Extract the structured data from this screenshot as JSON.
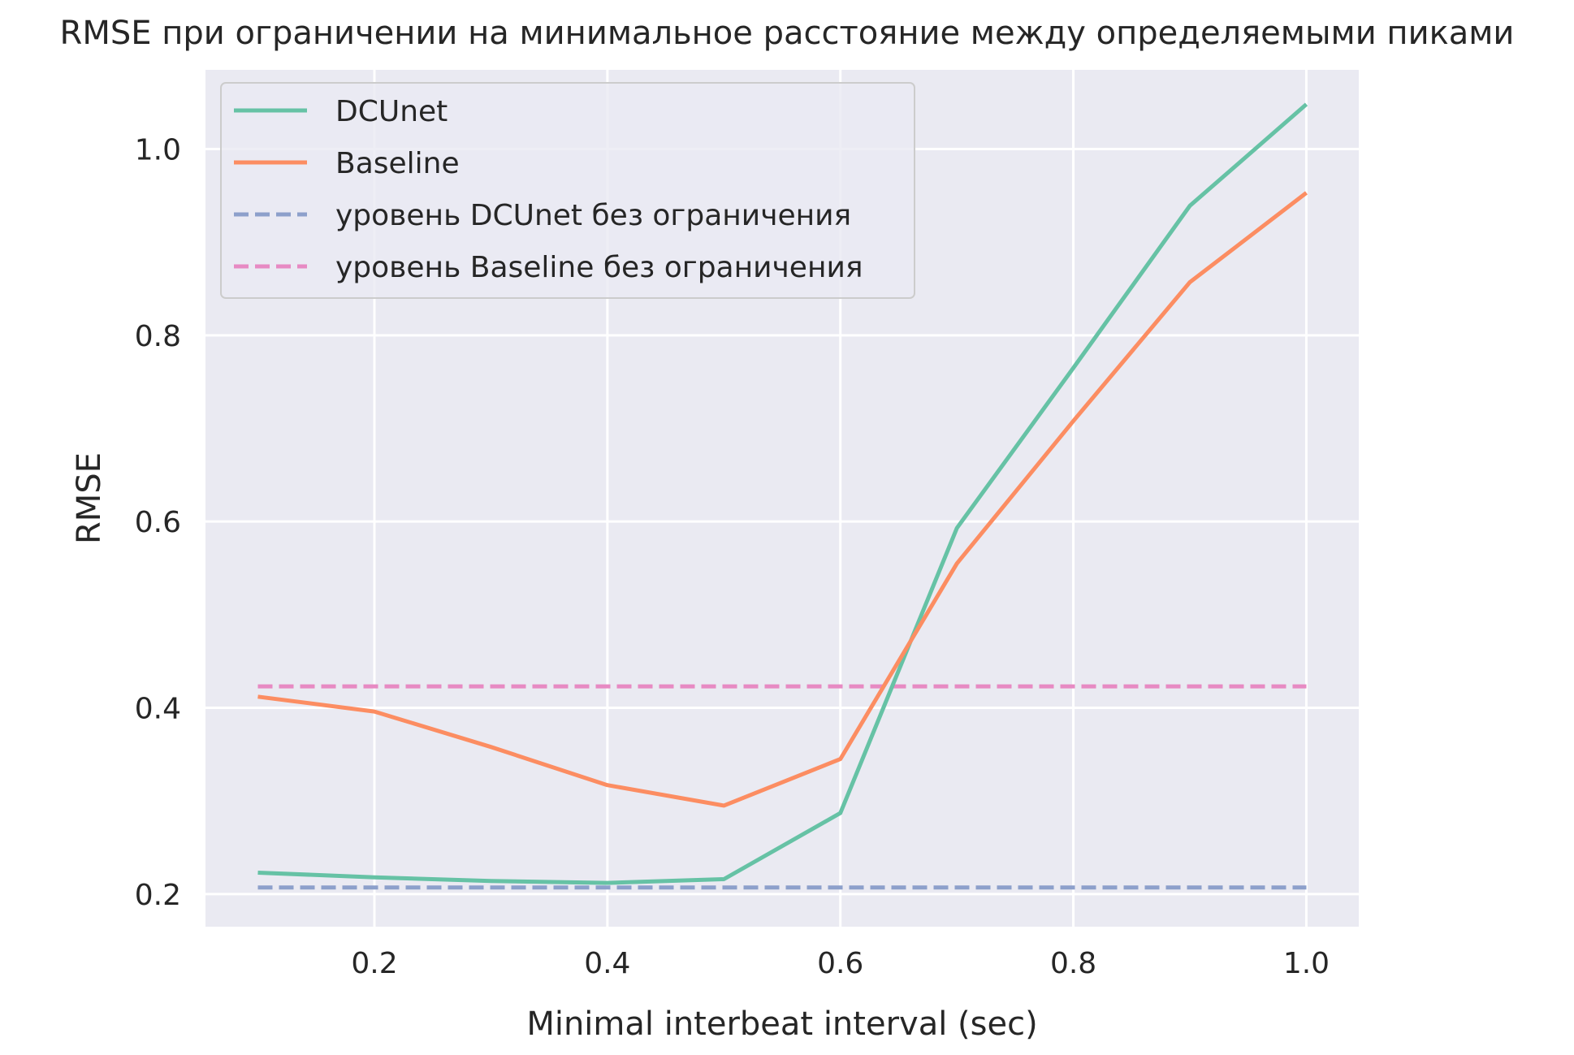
{
  "chart_data": {
    "type": "line",
    "title": "RMSE при ограничении на минимальное расстояние между определяемыми пиками",
    "xlabel": "Minimal interbeat interval (sec)",
    "ylabel": "RMSE",
    "xlim": [
      0.055,
      1.045
    ],
    "ylim": [
      0.165,
      1.085
    ],
    "xticks": [
      0.2,
      0.4,
      0.6,
      0.8,
      1.0
    ],
    "xtick_labels": [
      "0.2",
      "0.4",
      "0.6",
      "0.8",
      "1.0"
    ],
    "yticks": [
      0.2,
      0.4,
      0.6,
      0.8,
      1.0
    ],
    "ytick_labels": [
      "0.2",
      "0.4",
      "0.6",
      "0.8",
      "1.0"
    ],
    "grid": true,
    "background": "#eaeaf2",
    "legend_position": "top-left",
    "x": [
      0.1,
      0.2,
      0.3,
      0.4,
      0.5,
      0.6,
      0.7,
      0.8,
      0.9,
      1.0
    ],
    "series": [
      {
        "name": "DCUnet",
        "style": "solid",
        "color": "#66c2a5",
        "values": [
          0.223,
          0.218,
          0.214,
          0.212,
          0.216,
          0.287,
          0.593,
          0.765,
          0.939,
          1.048
        ]
      },
      {
        "name": "Baseline",
        "style": "solid",
        "color": "#fc8d62",
        "values": [
          0.412,
          0.396,
          0.358,
          0.317,
          0.295,
          0.345,
          0.555,
          0.708,
          0.857,
          0.953
        ]
      },
      {
        "name": "уровень DCUnet без ограничения",
        "style": "dashed",
        "color": "#8da0cb",
        "values": [
          0.207,
          0.207,
          0.207,
          0.207,
          0.207,
          0.207,
          0.207,
          0.207,
          0.207,
          0.207
        ]
      },
      {
        "name": "уровень Baseline без ограничения",
        "style": "dashed",
        "color": "#e78ac3",
        "values": [
          0.423,
          0.423,
          0.423,
          0.423,
          0.423,
          0.423,
          0.423,
          0.423,
          0.423,
          0.423
        ]
      }
    ]
  }
}
